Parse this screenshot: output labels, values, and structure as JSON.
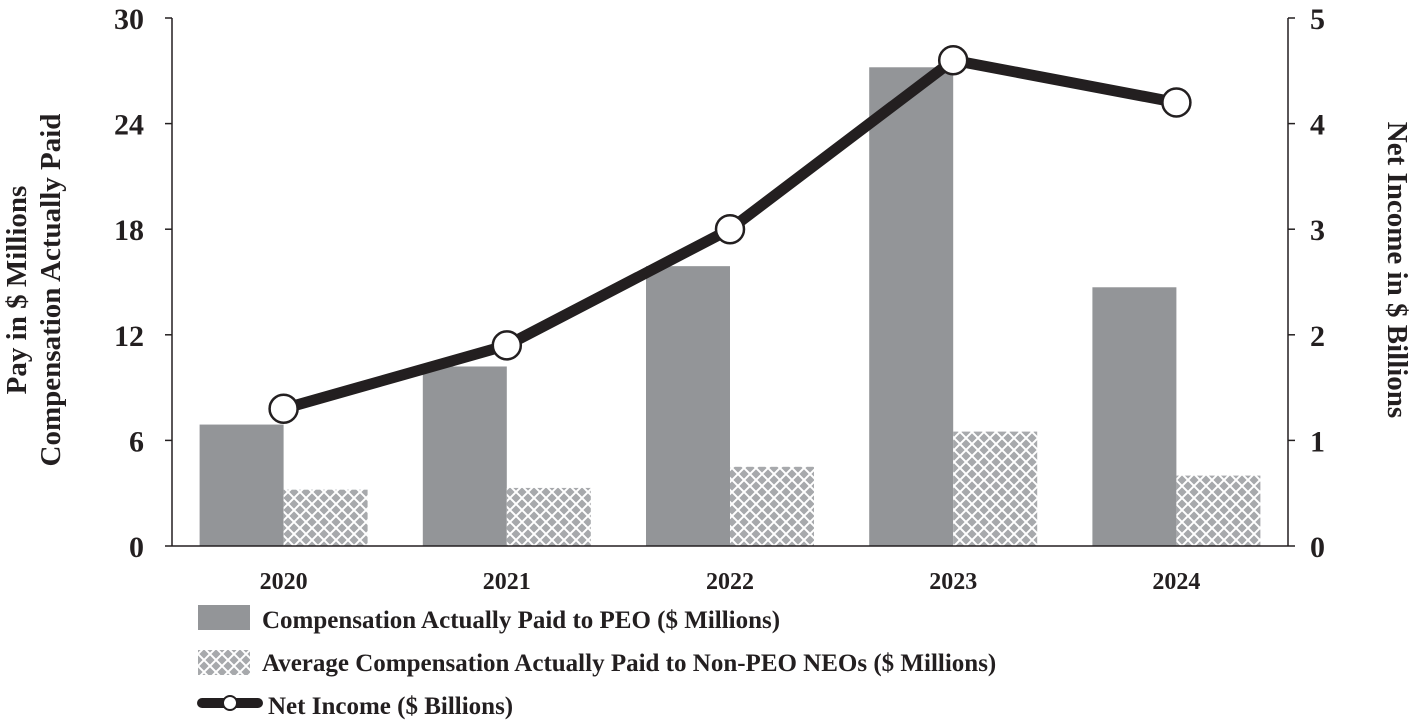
{
  "chart_data": {
    "type": "bar",
    "categories": [
      "2020",
      "2021",
      "2022",
      "2023",
      "2024"
    ],
    "series": [
      {
        "name": "Compensation Actually Paid to PEO ($ Millions)",
        "kind": "bar",
        "axis": "left",
        "color": "#939598",
        "pattern": "solid",
        "values": [
          6.9,
          10.2,
          15.9,
          27.2,
          14.7
        ]
      },
      {
        "name": "Average Compensation Actually Paid to Non-PEO NEOs ($ Millions)",
        "kind": "bar",
        "axis": "left",
        "color": "#a7a9ac",
        "pattern": "crosshatch",
        "values": [
          3.2,
          3.3,
          4.5,
          6.5,
          4.0
        ]
      },
      {
        "name": "Net Income ($ Billions)",
        "kind": "line",
        "axis": "right",
        "color": "#231f20",
        "marker": "circle",
        "values": [
          1.3,
          1.9,
          3.0,
          4.6,
          4.2
        ]
      }
    ],
    "left_axis": {
      "title_lines": [
        "Pay in $ Millions",
        "Compensation  Actually  Paid"
      ],
      "range": [
        0,
        30
      ],
      "ticks": [
        "0",
        "6",
        "12",
        "18",
        "24",
        "30"
      ],
      "tick_values": [
        0,
        6,
        12,
        18,
        24,
        30
      ]
    },
    "right_axis": {
      "title": "Net Income  in $ Billions",
      "range": [
        0,
        5
      ],
      "ticks": [
        "0",
        "1",
        "2",
        "3",
        "4",
        "5"
      ],
      "tick_values": [
        0,
        1,
        2,
        3,
        4,
        5
      ]
    },
    "grid": false,
    "legend_position": "bottom"
  }
}
